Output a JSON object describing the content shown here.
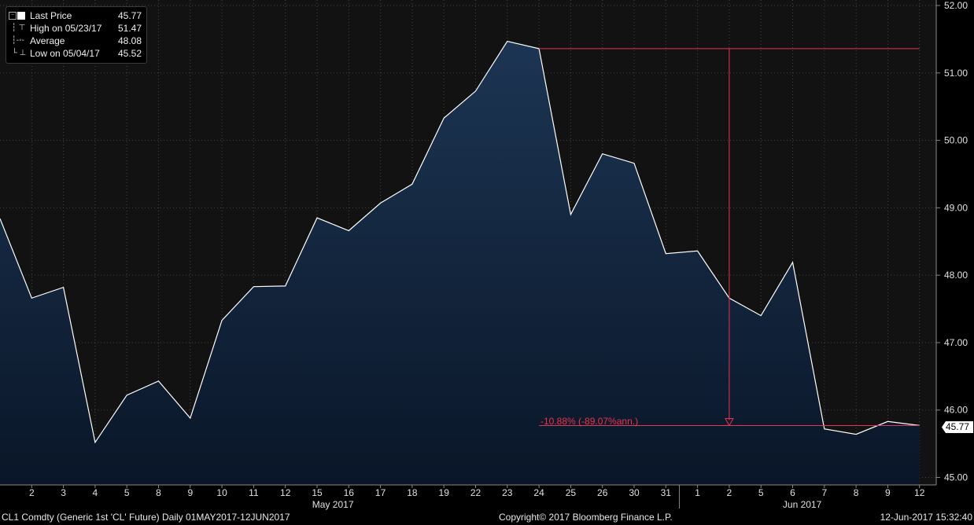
{
  "legend": {
    "last_price_label": "Last Price",
    "last_price_value": "45.77",
    "high_label": "High on 05/23/17",
    "high_value": "51.47",
    "average_label": "Average",
    "average_value": "48.08",
    "low_label": "Low on 05/04/17",
    "low_value": "45.52"
  },
  "annotation": {
    "change_label": "-10.88% (-89.07%ann.)"
  },
  "last_price_tag": "45.77",
  "footer": {
    "left": "CL1 Comdty (Generic 1st 'CL' Future)  Daily 01MAY2017-12JUN2017",
    "center": "Copyright© 2017 Bloomberg Finance L.P.",
    "right": "12-Jun-2017 15:32:40"
  },
  "colors": {
    "background": "#000000",
    "area_top": "#1c3553",
    "area_bottom": "#0b1a2e",
    "line": "#ffffff",
    "annotation": "#e8354f",
    "grid": "#3a3a3a"
  },
  "chart_data": {
    "type": "area",
    "x": [
      "1",
      "2",
      "3",
      "4",
      "5",
      "8",
      "9",
      "10",
      "11",
      "12",
      "15",
      "16",
      "17",
      "18",
      "19",
      "22",
      "23",
      "24",
      "25",
      "26",
      "30",
      "31",
      "1",
      "2",
      "5",
      "6",
      "7",
      "8",
      "9",
      "12"
    ],
    "x_dates": [
      "2017-05-01",
      "2017-05-02",
      "2017-05-03",
      "2017-05-04",
      "2017-05-05",
      "2017-05-08",
      "2017-05-09",
      "2017-05-10",
      "2017-05-11",
      "2017-05-12",
      "2017-05-15",
      "2017-05-16",
      "2017-05-17",
      "2017-05-18",
      "2017-05-19",
      "2017-05-22",
      "2017-05-23",
      "2017-05-24",
      "2017-05-25",
      "2017-05-26",
      "2017-05-30",
      "2017-05-31",
      "2017-06-01",
      "2017-06-02",
      "2017-06-05",
      "2017-06-06",
      "2017-06-07",
      "2017-06-08",
      "2017-06-09",
      "2017-06-12"
    ],
    "tick_labels": [
      "2",
      "3",
      "4",
      "5",
      "8",
      "9",
      "10",
      "11",
      "12",
      "15",
      "16",
      "17",
      "18",
      "19",
      "22",
      "23",
      "24",
      "25",
      "26",
      "30",
      "31",
      "1",
      "2",
      "5",
      "6",
      "7",
      "8",
      "9",
      "12"
    ],
    "month_labels": [
      {
        "label": "May 2017",
        "index": 10.5
      },
      {
        "label": "Jun 2017",
        "index": 25.3
      }
    ],
    "series": [
      {
        "name": "Last Price",
        "values": [
          48.84,
          47.66,
          47.82,
          45.52,
          46.22,
          46.43,
          45.88,
          47.33,
          47.83,
          47.84,
          48.85,
          48.66,
          49.07,
          49.35,
          50.33,
          50.73,
          51.47,
          51.36,
          48.9,
          49.8,
          49.66,
          48.32,
          48.36,
          47.66,
          47.4,
          48.19,
          45.72,
          45.64,
          45.83,
          45.77
        ]
      }
    ],
    "ylim": [
      44.9,
      52.0
    ],
    "yticks": [
      45.0,
      46.0,
      47.0,
      48.0,
      49.0,
      50.0,
      51.0,
      52.0
    ],
    "ytick_labels": [
      "45.00",
      "46.00",
      "47.00",
      "48.00",
      "49.00",
      "50.00",
      "51.00",
      "52.00"
    ],
    "grid": true,
    "legend_position": "top-left",
    "annotation_lines": {
      "from_index": 17,
      "to_index": 29,
      "high_value": 51.36,
      "low_value": 45.77,
      "arrow_index": 23
    }
  }
}
